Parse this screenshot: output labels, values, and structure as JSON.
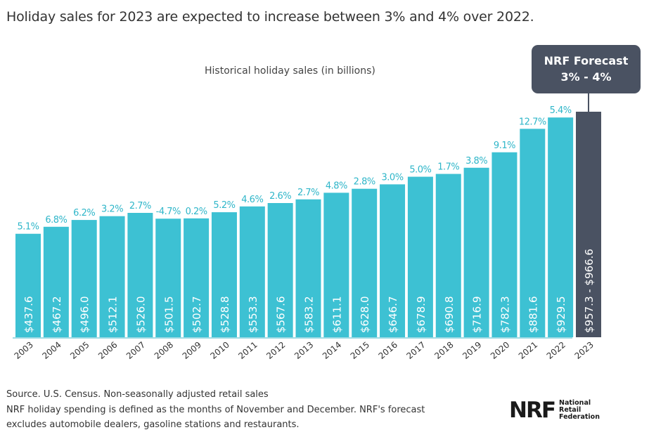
{
  "headline": "Holiday sales for 2023 are expected to increase between 3% and 4% over 2022.",
  "callout": {
    "line1": "NRF Forecast",
    "line2": "3% - 4%"
  },
  "footnotes": [
    "Source. U.S. Census. Non-seasonally adjusted retail sales",
    "NRF holiday spending is defined as the months of November and December. NRF's forecast",
    "excludes automobile dealers, gasoline stations and restaurants."
  ],
  "logo": {
    "mark": "NRF",
    "lines": [
      "National",
      "Retail",
      "Federation"
    ]
  },
  "colors": {
    "bar": "#3dc1d3",
    "forecast_bar": "#4a5262",
    "growth_label": "#2fb6c9",
    "baseline": "#9fdbe4"
  },
  "chart_data": {
    "type": "bar",
    "title": "Historical holiday sales (in billions)",
    "categories": [
      "2003",
      "2004",
      "2005",
      "2006",
      "2007",
      "2008",
      "2009",
      "2010",
      "2011",
      "2012",
      "2013",
      "2014",
      "2015",
      "2016",
      "2017",
      "2018",
      "2019",
      "2020",
      "2021",
      "2022",
      "2023"
    ],
    "values": [
      437.6,
      467.2,
      496.0,
      512.1,
      526.0,
      501.5,
      502.7,
      528.8,
      553.3,
      567.6,
      583.2,
      611.1,
      628.0,
      646.7,
      678.9,
      690.8,
      716.9,
      782.3,
      881.6,
      929.5,
      957.3
    ],
    "forecast_range": [
      957.3,
      966.6
    ],
    "value_labels": [
      "$437.6",
      "$467.2",
      "$496.0",
      "$512.1",
      "$526.0",
      "$501.5",
      "$502.7",
      "$528.8",
      "$553.3",
      "$567.6",
      "$583.2",
      "$611.1",
      "$628.0",
      "$646.7",
      "$678.9",
      "$690.8",
      "$716.9",
      "$782.3",
      "$881.6",
      "$929.5",
      "$957.3 - $966.6"
    ],
    "growth_labels": [
      "5.1%",
      "6.8%",
      "6.2%",
      "3.2%",
      "2.7%",
      "-4.7%",
      "0.2%",
      "5.2%",
      "4.6%",
      "2.6%",
      "2.7%",
      "4.8%",
      "2.8%",
      "3.0%",
      "5.0%",
      "1.7%",
      "3.8%",
      "9.1%",
      "12.7%",
      "5.4%",
      ""
    ],
    "ylim": [
      0,
      1000
    ],
    "grid": false
  }
}
